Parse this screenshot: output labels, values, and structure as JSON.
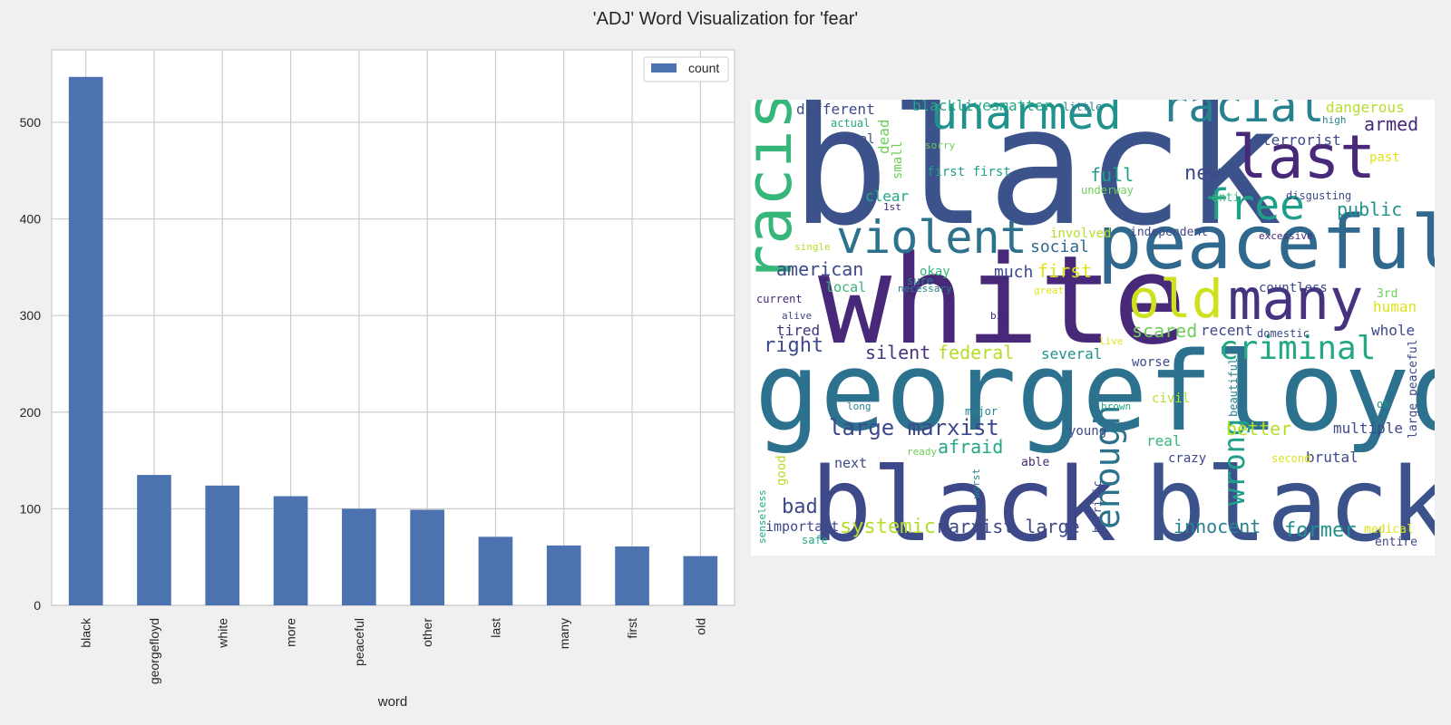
{
  "title": "'ADJ' Word Visualization for 'fear'",
  "chart_data": [
    {
      "type": "bar",
      "xlabel": "word",
      "ylabel": "",
      "categories": [
        "black",
        "georgefloyd",
        "white",
        "more",
        "peaceful",
        "other",
        "last",
        "many",
        "first",
        "old"
      ],
      "series": [
        {
          "name": "count",
          "values": [
            547,
            135,
            124,
            113,
            100,
            99,
            71,
            62,
            61,
            51
          ]
        }
      ],
      "ylim": [
        0,
        575
      ],
      "yticks": [
        0,
        100,
        200,
        300,
        400,
        500
      ],
      "grid": true,
      "legend_position": "top-right",
      "colors": {
        "bar": "#4c72b0",
        "grid": "#cccccc",
        "axes_bg": "#ffffff"
      }
    }
  ],
  "wordcloud": {
    "colormap": "viridis",
    "background": "#ffffff",
    "words": [
      {
        "t": "black",
        "c": "#3b528b",
        "v": true
      },
      {
        "t": "white",
        "c": "#482878",
        "v": true
      },
      {
        "t": "georgefloyd",
        "c": "#2c728e",
        "v": true
      },
      {
        "t": "black",
        "c": "#3e4989",
        "v": true
      },
      {
        "t": "black",
        "c": "#3b528b",
        "v": true
      },
      {
        "t": "peaceful",
        "c": "#31688e",
        "v": true
      },
      {
        "t": "racist",
        "c": "#35b779",
        "v": true
      },
      {
        "t": "violent",
        "c": "#2c728e",
        "v": true
      },
      {
        "t": "unarmed",
        "c": "#21918c",
        "v": true
      },
      {
        "t": "racial",
        "c": "#26828e",
        "v": true
      },
      {
        "t": "last",
        "c": "#482878",
        "v": true
      },
      {
        "t": "free",
        "c": "#1f9e89",
        "v": true
      },
      {
        "t": "many",
        "c": "#46327e",
        "v": true
      },
      {
        "t": "old",
        "c": "#cde11d",
        "v": true
      },
      {
        "t": "criminal",
        "c": "#22a884",
        "v": true
      },
      {
        "t": "enough",
        "c": "#2c728e",
        "v": true
      },
      {
        "t": "wrong",
        "c": "#1f9e89",
        "v": true
      },
      {
        "t": "large marxist",
        "c": "#3e4989",
        "v": true
      },
      {
        "t": "american",
        "c": "#3e4989",
        "v": true
      },
      {
        "t": "public",
        "c": "#21918c",
        "v": true
      },
      {
        "t": "armed",
        "c": "#482878",
        "v": true
      },
      {
        "t": "new",
        "c": "#3e4989",
        "v": true
      },
      {
        "t": "full",
        "c": "#1f9e89",
        "v": true
      },
      {
        "t": "social",
        "c": "#31688e",
        "v": true
      },
      {
        "t": "first",
        "c": "#dde318",
        "v": true
      },
      {
        "t": "much",
        "c": "#3e4989",
        "v": true
      },
      {
        "t": "right",
        "c": "#3e4989",
        "v": true
      },
      {
        "t": "silent",
        "c": "#46327e",
        "v": true
      },
      {
        "t": "federal",
        "c": "#b5de2b",
        "v": true
      },
      {
        "t": "several",
        "c": "#21918c",
        "v": true
      },
      {
        "t": "scared",
        "c": "#6ece58",
        "v": true
      },
      {
        "t": "recent",
        "c": "#3e4989",
        "v": true
      },
      {
        "t": "better",
        "c": "#b5de2b",
        "v": true
      },
      {
        "t": "afraid",
        "c": "#22a884",
        "v": true
      },
      {
        "t": "bad",
        "c": "#3e4989",
        "v": true
      },
      {
        "t": "systemic",
        "c": "#b5de2b",
        "v": true
      },
      {
        "t": "marxist large",
        "c": "#3e4989",
        "v": true
      },
      {
        "t": "innocent",
        "c": "#26828e",
        "v": true
      },
      {
        "t": "former",
        "c": "#21918c",
        "v": true
      },
      {
        "t": "brutal",
        "c": "#3e4989",
        "v": true
      },
      {
        "t": "multiple",
        "c": "#3e4989",
        "v": true
      },
      {
        "t": "whole",
        "c": "#3e4989",
        "v": true
      },
      {
        "t": "human",
        "c": "#dde318",
        "v": true
      },
      {
        "t": "dangerous",
        "c": "#b5de2b",
        "v": true
      },
      {
        "t": "terrorist",
        "c": "#3e4989",
        "v": true
      },
      {
        "t": "different",
        "c": "#3e4989",
        "v": true
      },
      {
        "t": "blacklivesmatter",
        "c": "#22a884",
        "v": true
      },
      {
        "t": "little",
        "c": "#26828e",
        "v": true
      },
      {
        "t": "mental",
        "c": "#3e4989",
        "v": true
      },
      {
        "t": "actual",
        "c": "#22a884",
        "v": true
      },
      {
        "t": "dead",
        "c": "#6ece58",
        "v": true
      },
      {
        "t": "small",
        "c": "#6ece58",
        "v": true
      },
      {
        "t": "sorry",
        "c": "#6ece58",
        "v": true
      },
      {
        "t": "first first",
        "c": "#1f9e89",
        "v": true
      },
      {
        "t": "underway",
        "c": "#6ece58",
        "v": true
      },
      {
        "t": "clear",
        "c": "#22a884",
        "v": true
      },
      {
        "t": "1st",
        "c": "#482878",
        "v": true
      },
      {
        "t": "anti",
        "c": "#35b779",
        "v": true
      },
      {
        "t": "disgusting",
        "c": "#3e4989",
        "v": true
      },
      {
        "t": "high",
        "c": "#26828e",
        "v": true
      },
      {
        "t": "past",
        "c": "#dde318",
        "v": true
      },
      {
        "t": "involved",
        "c": "#b5de2b",
        "v": true
      },
      {
        "t": "independent",
        "c": "#3e4989",
        "v": true
      },
      {
        "t": "excessive",
        "c": "#482878",
        "v": true
      },
      {
        "t": "single",
        "c": "#b5de2b",
        "v": true
      },
      {
        "t": "okay",
        "c": "#35b779",
        "v": true
      },
      {
        "t": "sure",
        "c": "#26828e",
        "v": true
      },
      {
        "t": "necessary",
        "c": "#26828e",
        "v": true
      },
      {
        "t": "local",
        "c": "#35b779",
        "v": true
      },
      {
        "t": "great",
        "c": "#dde318",
        "v": true
      },
      {
        "t": "countless",
        "c": "#3e4989",
        "v": true
      },
      {
        "t": "3rd",
        "c": "#6ece58",
        "v": true
      },
      {
        "t": "current",
        "c": "#482878",
        "v": true
      },
      {
        "t": "alive",
        "c": "#3e4989",
        "v": true
      },
      {
        "t": "big",
        "c": "#482878",
        "v": true
      },
      {
        "t": "tired",
        "c": "#46327e",
        "v": true
      },
      {
        "t": "live",
        "c": "#dde318",
        "v": true
      },
      {
        "t": "domestic",
        "c": "#3e4989",
        "v": true
      },
      {
        "t": "worse",
        "c": "#3e4989",
        "v": true
      },
      {
        "t": "long",
        "c": "#26828e",
        "v": true
      },
      {
        "t": "major",
        "c": "#26828e",
        "v": true
      },
      {
        "t": "brown",
        "c": "#22a884",
        "v": true
      },
      {
        "t": "civil",
        "c": "#b5de2b",
        "v": true
      },
      {
        "t": "beautiful",
        "c": "#26828e",
        "v": true
      },
      {
        "t": "ok",
        "c": "#21918c",
        "v": true
      },
      {
        "t": "large peaceful",
        "c": "#3e4989",
        "v": true
      },
      {
        "t": "young",
        "c": "#3e4989",
        "v": true
      },
      {
        "t": "real",
        "c": "#35b779",
        "v": true
      },
      {
        "t": "ready",
        "c": "#6ece58",
        "v": true
      },
      {
        "t": "crazy",
        "c": "#3e4989",
        "v": true
      },
      {
        "t": "second",
        "c": "#dde318",
        "v": true
      },
      {
        "t": "good",
        "c": "#b5de2b",
        "v": true
      },
      {
        "t": "next",
        "c": "#3e4989",
        "v": true
      },
      {
        "t": "able",
        "c": "#482878",
        "v": true
      },
      {
        "t": "worst",
        "c": "#26828e",
        "v": true
      },
      {
        "t": "horrific",
        "c": "#3e4989",
        "v": true
      },
      {
        "t": "senseless",
        "c": "#22a884",
        "v": true
      },
      {
        "t": "important",
        "c": "#3e4989",
        "v": true
      },
      {
        "t": "safe",
        "c": "#22a884",
        "v": true
      },
      {
        "t": "medical",
        "c": "#dde318",
        "v": true
      },
      {
        "t": "entire",
        "c": "#3e4989",
        "v": true
      }
    ]
  }
}
